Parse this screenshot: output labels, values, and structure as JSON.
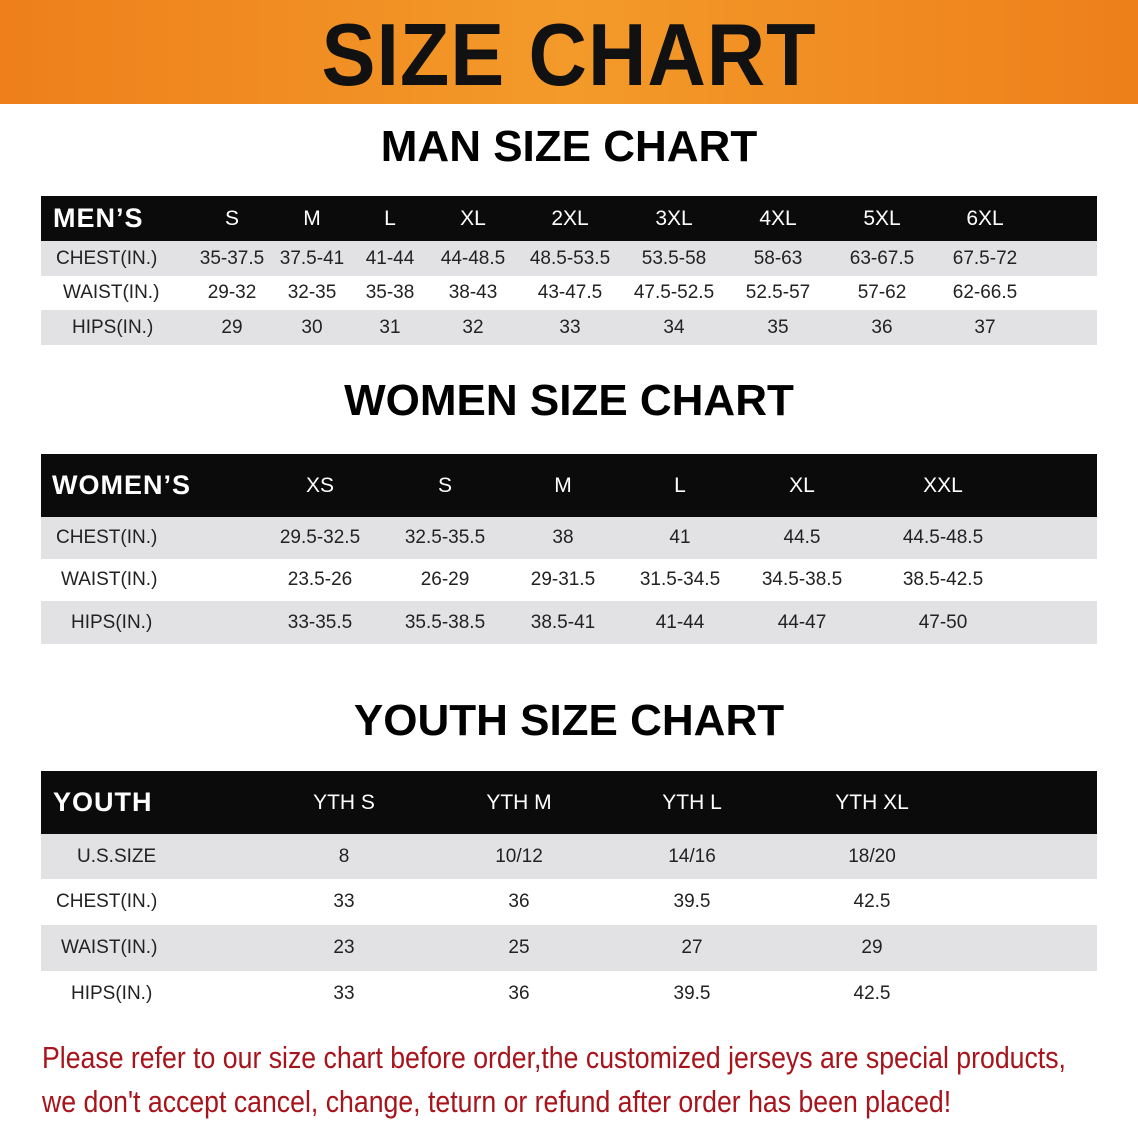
{
  "banner_title": "SIZE CHART",
  "men": {
    "title": "MAN SIZE CHART",
    "header": [
      "MEN’S",
      "S",
      "M",
      "L",
      "XL",
      "2XL",
      "3XL",
      "4XL",
      "5XL",
      "6XL"
    ],
    "rows": [
      [
        "CHEST(IN.)",
        "35-37.5",
        "37.5-41",
        "41-44",
        "44-48.5",
        "48.5-53.5",
        "53.5-58",
        "58-63",
        "63-67.5",
        "67.5-72"
      ],
      [
        "WAIST(IN.)",
        "29-32",
        "32-35",
        "35-38",
        "38-43",
        "43-47.5",
        "47.5-52.5",
        "52.5-57",
        "57-62",
        "62-66.5"
      ],
      [
        "HIPS(IN.)",
        "29",
        "30",
        "31",
        "32",
        "33",
        "34",
        "35",
        "36",
        "37"
      ]
    ]
  },
  "women": {
    "title": "WOMEN SIZE CHART",
    "header": [
      "WOMEN’S",
      "XS",
      "S",
      "M",
      "L",
      "XL",
      "XXL"
    ],
    "rows": [
      [
        "CHEST(IN.)",
        "29.5-32.5",
        "32.5-35.5",
        "38",
        "41",
        "44.5",
        "44.5-48.5"
      ],
      [
        "WAIST(IN.)",
        "23.5-26",
        "26-29",
        "29-31.5",
        "31.5-34.5",
        "34.5-38.5",
        "38.5-42.5"
      ],
      [
        "HIPS(IN.)",
        "33-35.5",
        "35.5-38.5",
        "38.5-41",
        "41-44",
        "44-47",
        "47-50"
      ]
    ]
  },
  "youth": {
    "title": "YOUTH SIZE CHART",
    "header": [
      "YOUTH",
      "YTH S",
      "YTH M",
      "YTH L",
      "YTH XL"
    ],
    "rows": [
      [
        "U.S.SIZE",
        "8",
        "10/12",
        "14/16",
        "18/20"
      ],
      [
        "CHEST(IN.)",
        "33",
        "36",
        "39.5",
        "42.5"
      ],
      [
        "WAIST(IN.)",
        "23",
        "25",
        "27",
        "29"
      ],
      [
        "HIPS(IN.)",
        "33",
        "36",
        "39.5",
        "42.5"
      ]
    ]
  },
  "note": {
    "line1": "Please refer to our size chart before order,the customized jerseys are special products,",
    "line2": "we don't accept cancel, change, teturn or refund after order has been placed!"
  },
  "colors": {
    "banner": "#ee7f1a",
    "header_bg": "#0b0b0b",
    "stripe": "#e2e2e4",
    "note": "#a8141c"
  }
}
